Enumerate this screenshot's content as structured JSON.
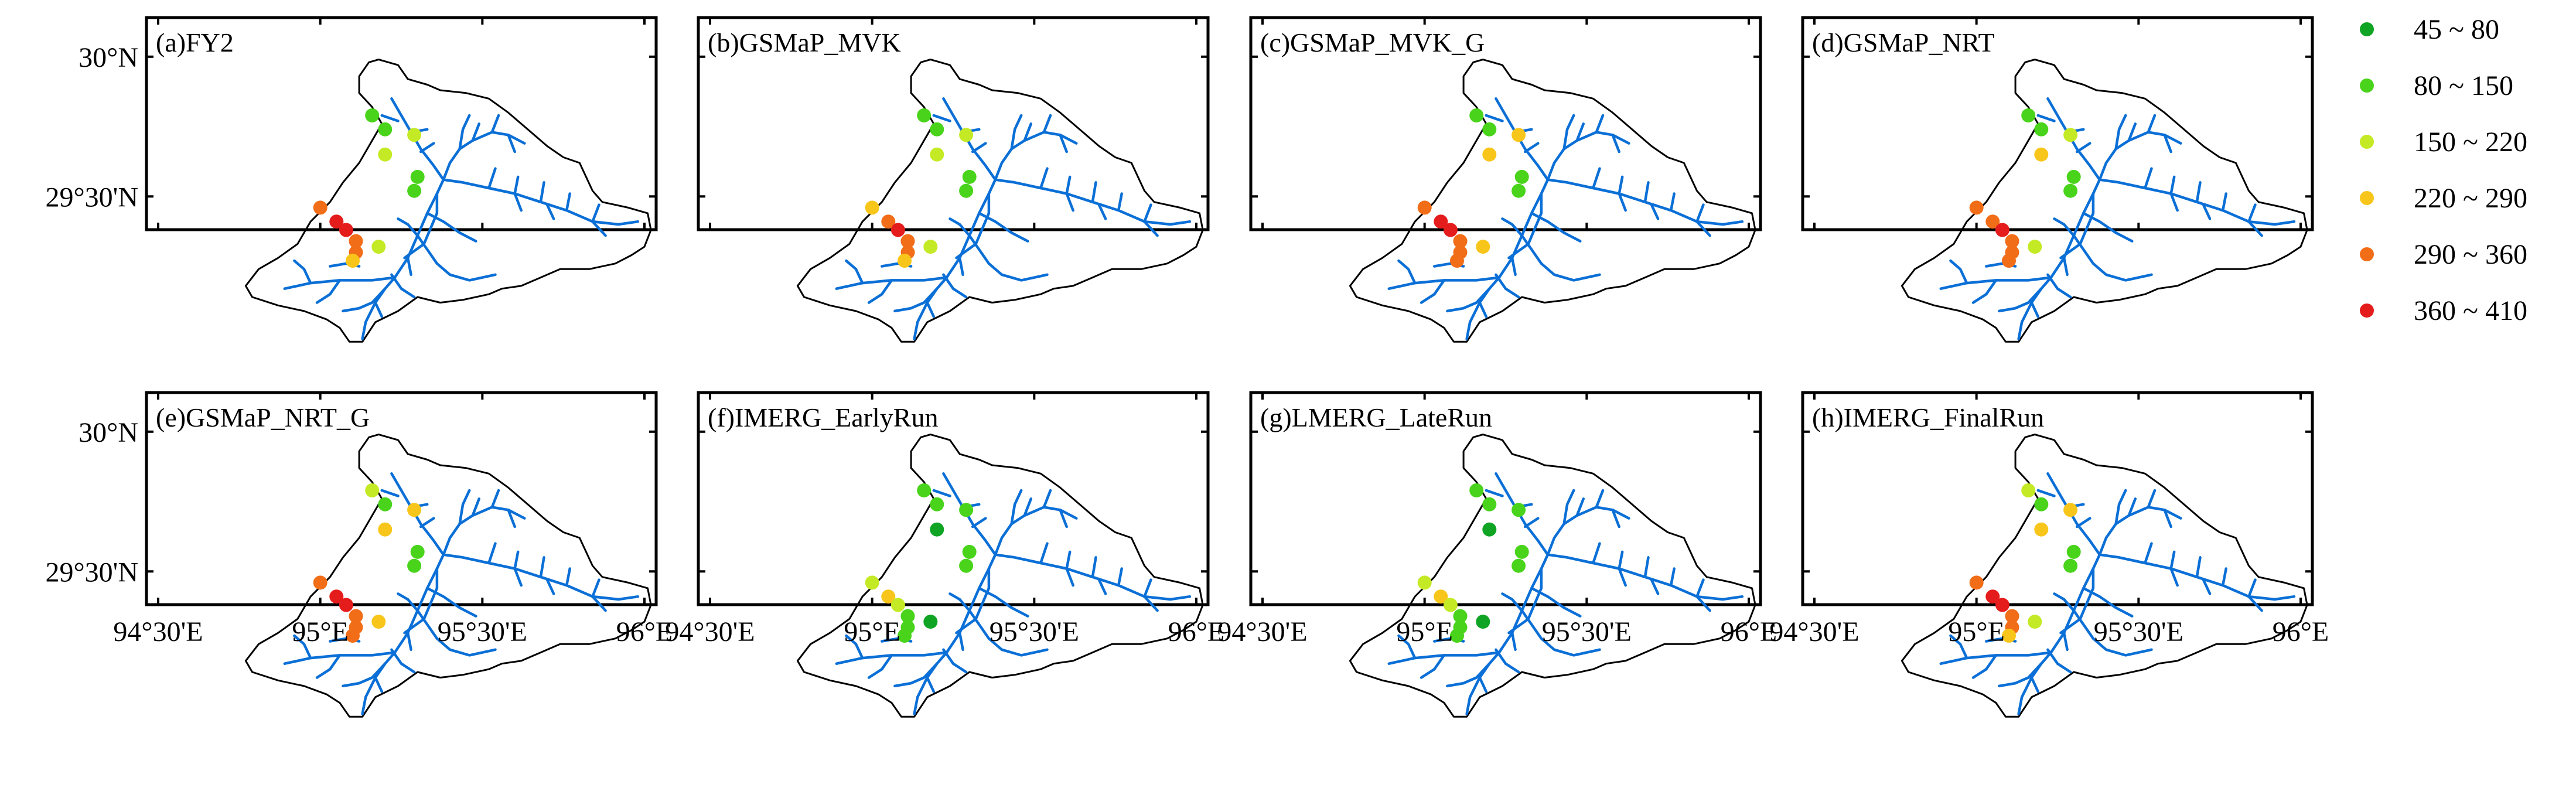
{
  "chart_data": {
    "type": "scatter",
    "title": "",
    "xlabel": "",
    "ylabel": "",
    "x_ticks": [
      {
        "value": 94.5,
        "label": "94°30'E"
      },
      {
        "value": 95.0,
        "label": "95°E"
      },
      {
        "value": 95.5,
        "label": "95°30'E"
      },
      {
        "value": 96.0,
        "label": "96°E"
      }
    ],
    "y_ticks": [
      {
        "value": 30.0,
        "label": "30°N"
      },
      {
        "value": 29.5,
        "label": "29°30'N"
      }
    ],
    "xlim": [
      94.5,
      96.0
    ],
    "ylim": [
      29.0,
      30.0
    ],
    "grid": false,
    "legend_position": "right",
    "legend": [
      {
        "label": "45 ~ 80",
        "color": "#0fa424"
      },
      {
        "label": "80 ~ 150",
        "color": "#49d41b"
      },
      {
        "label": "150 ~ 220",
        "color": "#c4ea26"
      },
      {
        "label": "220 ~ 290",
        "color": "#f8c61b"
      },
      {
        "label": "290 ~ 360",
        "color": "#f26d17"
      },
      {
        "label": "360 ~ 410",
        "color": "#e51c1c"
      }
    ],
    "stations": [
      {
        "lon": 95.16,
        "lat": 29.79
      },
      {
        "lon": 95.2,
        "lat": 29.74
      },
      {
        "lon": 95.29,
        "lat": 29.72
      },
      {
        "lon": 95.2,
        "lat": 29.65
      },
      {
        "lon": 95.29,
        "lat": 29.52
      },
      {
        "lon": 95.3,
        "lat": 29.57
      },
      {
        "lon": 95.0,
        "lat": 29.46
      },
      {
        "lon": 95.05,
        "lat": 29.41
      },
      {
        "lon": 95.08,
        "lat": 29.38
      },
      {
        "lon": 95.11,
        "lat": 29.34
      },
      {
        "lon": 95.11,
        "lat": 29.3
      },
      {
        "lon": 95.1,
        "lat": 29.27
      },
      {
        "lon": 95.18,
        "lat": 29.32
      }
    ],
    "panels": [
      {
        "label": "(a)FY2",
        "classes": [
          1,
          1,
          2,
          2,
          1,
          1,
          4,
          5,
          5,
          4,
          4,
          3,
          2
        ]
      },
      {
        "label": "(b)GSMaP_MVK",
        "classes": [
          1,
          1,
          2,
          2,
          1,
          1,
          3,
          4,
          5,
          4,
          4,
          3,
          2
        ]
      },
      {
        "label": "(c)GSMaP_MVK_G",
        "classes": [
          1,
          1,
          3,
          3,
          1,
          1,
          4,
          5,
          5,
          4,
          4,
          4,
          3
        ]
      },
      {
        "label": "(d)GSMaP_NRT",
        "classes": [
          1,
          1,
          2,
          3,
          1,
          1,
          4,
          4,
          5,
          4,
          4,
          4,
          2
        ]
      },
      {
        "label": "(e)GSMaP_NRT_G",
        "classes": [
          2,
          1,
          3,
          3,
          1,
          1,
          4,
          5,
          5,
          4,
          4,
          4,
          3
        ]
      },
      {
        "label": "(f)IMERG_EarlyRun",
        "classes": [
          1,
          1,
          1,
          0,
          1,
          1,
          2,
          3,
          2,
          1,
          1,
          1,
          0
        ]
      },
      {
        "label": "(g)LMERG_LateRun",
        "classes": [
          1,
          1,
          1,
          0,
          1,
          1,
          2,
          3,
          2,
          1,
          1,
          1,
          0
        ]
      },
      {
        "label": "(h)IMERG_FinalRun",
        "classes": [
          2,
          1,
          3,
          3,
          1,
          1,
          4,
          5,
          5,
          4,
          4,
          3,
          2
        ]
      }
    ]
  }
}
